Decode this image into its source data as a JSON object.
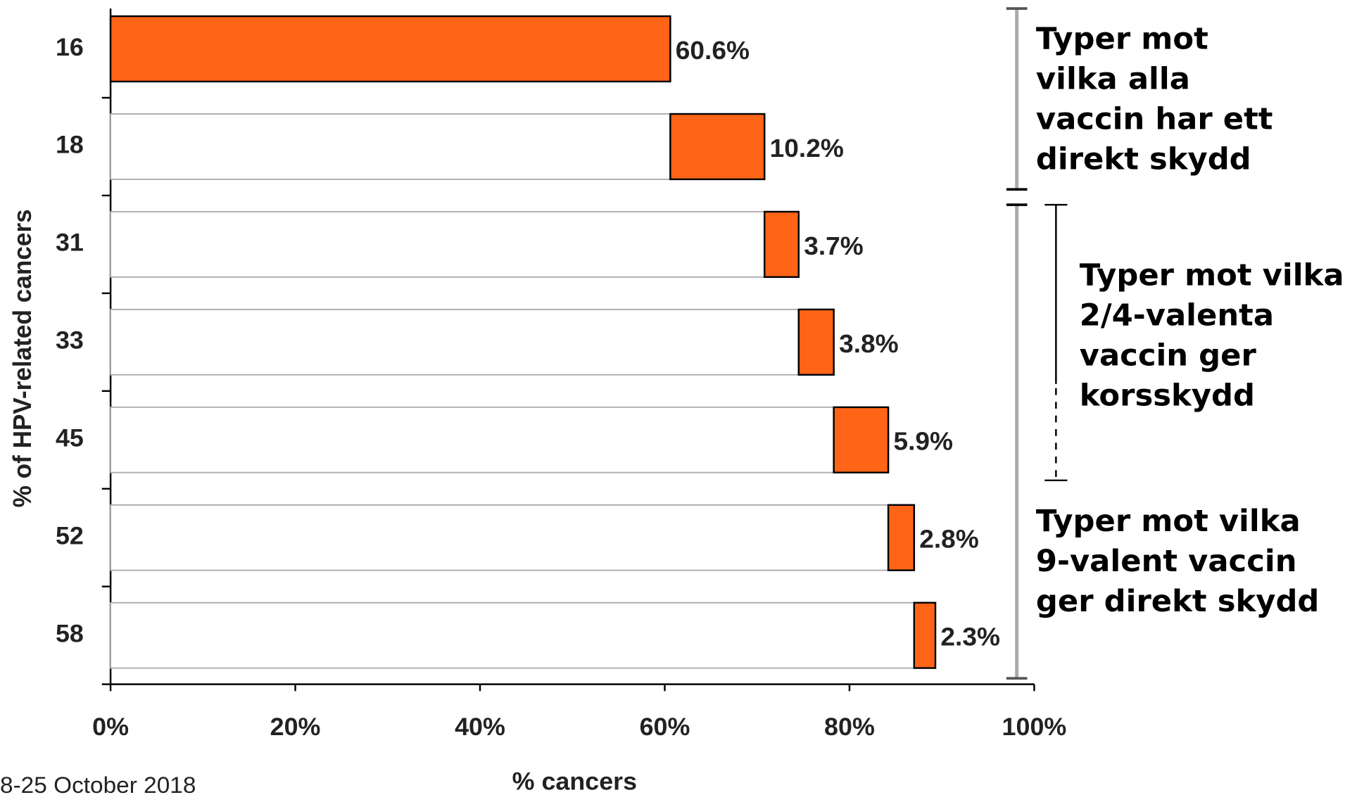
{
  "chart_data": {
    "type": "waterfall-bar",
    "categories": [
      "16",
      "18",
      "31",
      "33",
      "45",
      "52",
      "58"
    ],
    "values": [
      60.6,
      10.2,
      3.7,
      3.8,
      5.9,
      2.8,
      2.3
    ],
    "value_labels": [
      "60.6%",
      "10.2%",
      "3.7%",
      "3.8%",
      "5.9%",
      "2.8%",
      "2.3%"
    ],
    "color": "#ff6417",
    "xlim": [
      0,
      100
    ],
    "xticks": [
      {
        "value": 0,
        "label": "0%"
      },
      {
        "value": 20,
        "label": "20%"
      },
      {
        "value": 40,
        "label": "40%"
      },
      {
        "value": 60,
        "label": "60%"
      },
      {
        "value": 80,
        "label": "80%"
      },
      {
        "value": 100,
        "label": "100%"
      }
    ],
    "xlabel": "% cancers",
    "ylabel": "% of HPV-related cancers",
    "annotations": [
      [
        "Typer mot",
        "vilka alla",
        "vaccin har ett",
        "direkt skydd"
      ],
      [
        "Typer mot vilka",
        "2/4-valenta",
        "vaccin ger",
        "korsskydd"
      ],
      [
        "Typer mot vilka",
        "9-valent vaccin",
        "ger direkt skydd"
      ]
    ],
    "footnote": "8-25 October 2018"
  }
}
